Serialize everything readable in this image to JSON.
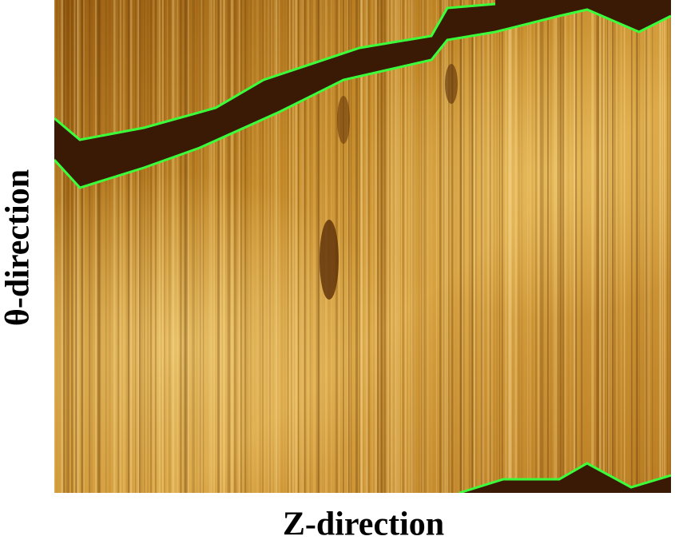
{
  "labels": {
    "x_axis": "Z-direction",
    "y_axis": "θ-direction"
  }
}
